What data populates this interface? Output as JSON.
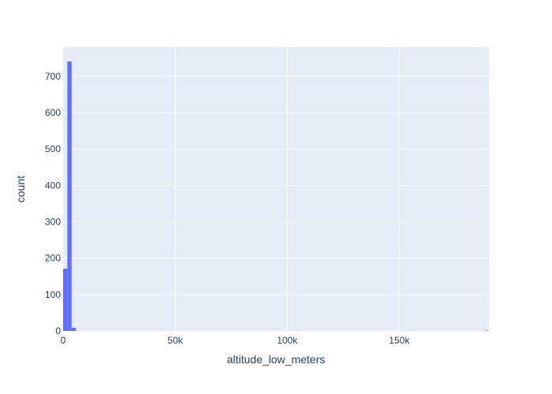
{
  "chart_data": {
    "type": "bar",
    "subtype": "histogram",
    "title": "",
    "xlabel": "altitude_low_meters",
    "ylabel": "count",
    "xlim": [
      0,
      190000
    ],
    "ylim": [
      0,
      780
    ],
    "bin_width": 1900,
    "bins": [
      {
        "x0": 0,
        "x1": 1900,
        "count": 171
      },
      {
        "x0": 1900,
        "x1": 3800,
        "count": 741
      },
      {
        "x0": 3800,
        "x1": 5700,
        "count": 9
      },
      {
        "x0": 188100,
        "x1": 190000,
        "count": 1
      }
    ],
    "x_ticks": [
      {
        "value": 0,
        "label": "0"
      },
      {
        "value": 50000,
        "label": "50k"
      },
      {
        "value": 100000,
        "label": "100k"
      },
      {
        "value": 150000,
        "label": "150k"
      }
    ],
    "y_ticks": [
      {
        "value": 0,
        "label": "0"
      },
      {
        "value": 100,
        "label": "100"
      },
      {
        "value": 200,
        "label": "200"
      },
      {
        "value": 300,
        "label": "300"
      },
      {
        "value": 400,
        "label": "400"
      },
      {
        "value": 500,
        "label": "500"
      },
      {
        "value": 600,
        "label": "600"
      },
      {
        "value": 700,
        "label": "700"
      }
    ],
    "grid": true,
    "colors": {
      "bar": "#636efa",
      "plot_background": "#e5ecf6",
      "gridline": "#ffffff",
      "text": "#2a3f5f"
    }
  }
}
